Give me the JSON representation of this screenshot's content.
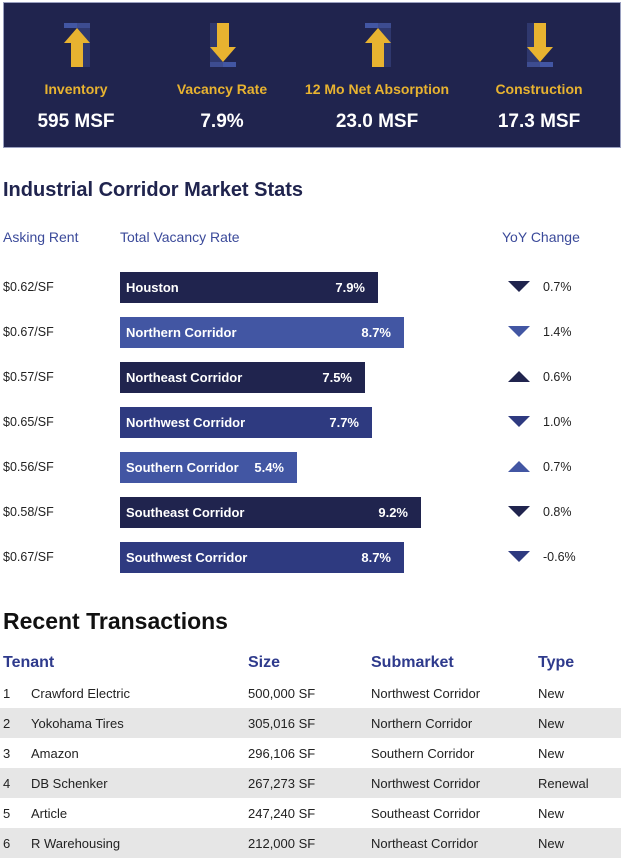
{
  "colors": {
    "navy": "#20244e",
    "medium": "#2e3a80",
    "light": "#4256a3",
    "gold": "#e8b330"
  },
  "kpis": [
    {
      "label": "Inventory",
      "value": "595 MSF",
      "icon": "arrow-up-icon"
    },
    {
      "label": "Vacancy Rate",
      "value": "7.9%",
      "icon": "arrow-down-icon"
    },
    {
      "label": "12 Mo Net Absorption",
      "value": "23.0 MSF",
      "icon": "arrow-up-icon"
    },
    {
      "label": "Construction",
      "value": "17.3 MSF",
      "icon": "arrow-down-icon"
    }
  ],
  "stats_title": "Industrial Corridor Market Stats",
  "columns": {
    "rent": "Asking Rent",
    "vacancy": "Total Vacancy Rate",
    "yoy": "YoY Change"
  },
  "chart_data": {
    "type": "bar",
    "orientation": "horizontal",
    "categories": [
      "Houston",
      "Northern Corridor",
      "Northeast Corridor",
      "Northwest Corridor",
      "Southern Corridor",
      "Southeast Corridor",
      "Southwest Corridor"
    ],
    "values": [
      7.9,
      8.7,
      7.5,
      7.7,
      5.4,
      9.2,
      8.7
    ],
    "value_labels": [
      "7.9%",
      "8.7%",
      "7.5%",
      "7.7%",
      "5.4%",
      "9.2%",
      "8.7%"
    ],
    "asking_rent": [
      "$0.62/SF",
      "$0.67/SF",
      "$0.57/SF",
      "$0.65/SF",
      "$0.56/SF",
      "$0.58/SF",
      "$0.67/SF"
    ],
    "yoy_change": [
      "0.7%",
      "1.4%",
      "0.6%",
      "1.0%",
      "0.7%",
      "0.8%",
      "-0.6%"
    ],
    "yoy_direction": [
      "down",
      "down",
      "up",
      "down",
      "up",
      "down",
      "down"
    ],
    "bar_colors": [
      "#20244e",
      "#4256a3",
      "#20244e",
      "#2e3a80",
      "#4256a3",
      "#20244e",
      "#2e3a80"
    ]
  },
  "transactions": {
    "title": "Recent Transactions",
    "headers": [
      "Tenant",
      "Size",
      "Submarket",
      "Type"
    ],
    "rows": [
      {
        "n": "1",
        "tenant": "Crawford Electric",
        "size": "500,000 SF",
        "submarket": "Northwest Corridor",
        "type": "New"
      },
      {
        "n": "2",
        "tenant": "Yokohama Tires",
        "size": "305,016 SF",
        "submarket": "Northern Corridor",
        "type": "New"
      },
      {
        "n": "3",
        "tenant": "Amazon",
        "size": "296,106 SF",
        "submarket": "Southern Corridor",
        "type": "New"
      },
      {
        "n": "4",
        "tenant": "DB Schenker",
        "size": "267,273 SF",
        "submarket": "Northwest Corridor",
        "type": "Renewal"
      },
      {
        "n": "5",
        "tenant": "Article",
        "size": "247,240 SF",
        "submarket": "Southeast Corridor",
        "type": "New"
      },
      {
        "n": "6",
        "tenant": "R Warehousing",
        "size": "212,000 SF",
        "submarket": "Northeast Corridor",
        "type": "New"
      }
    ]
  }
}
